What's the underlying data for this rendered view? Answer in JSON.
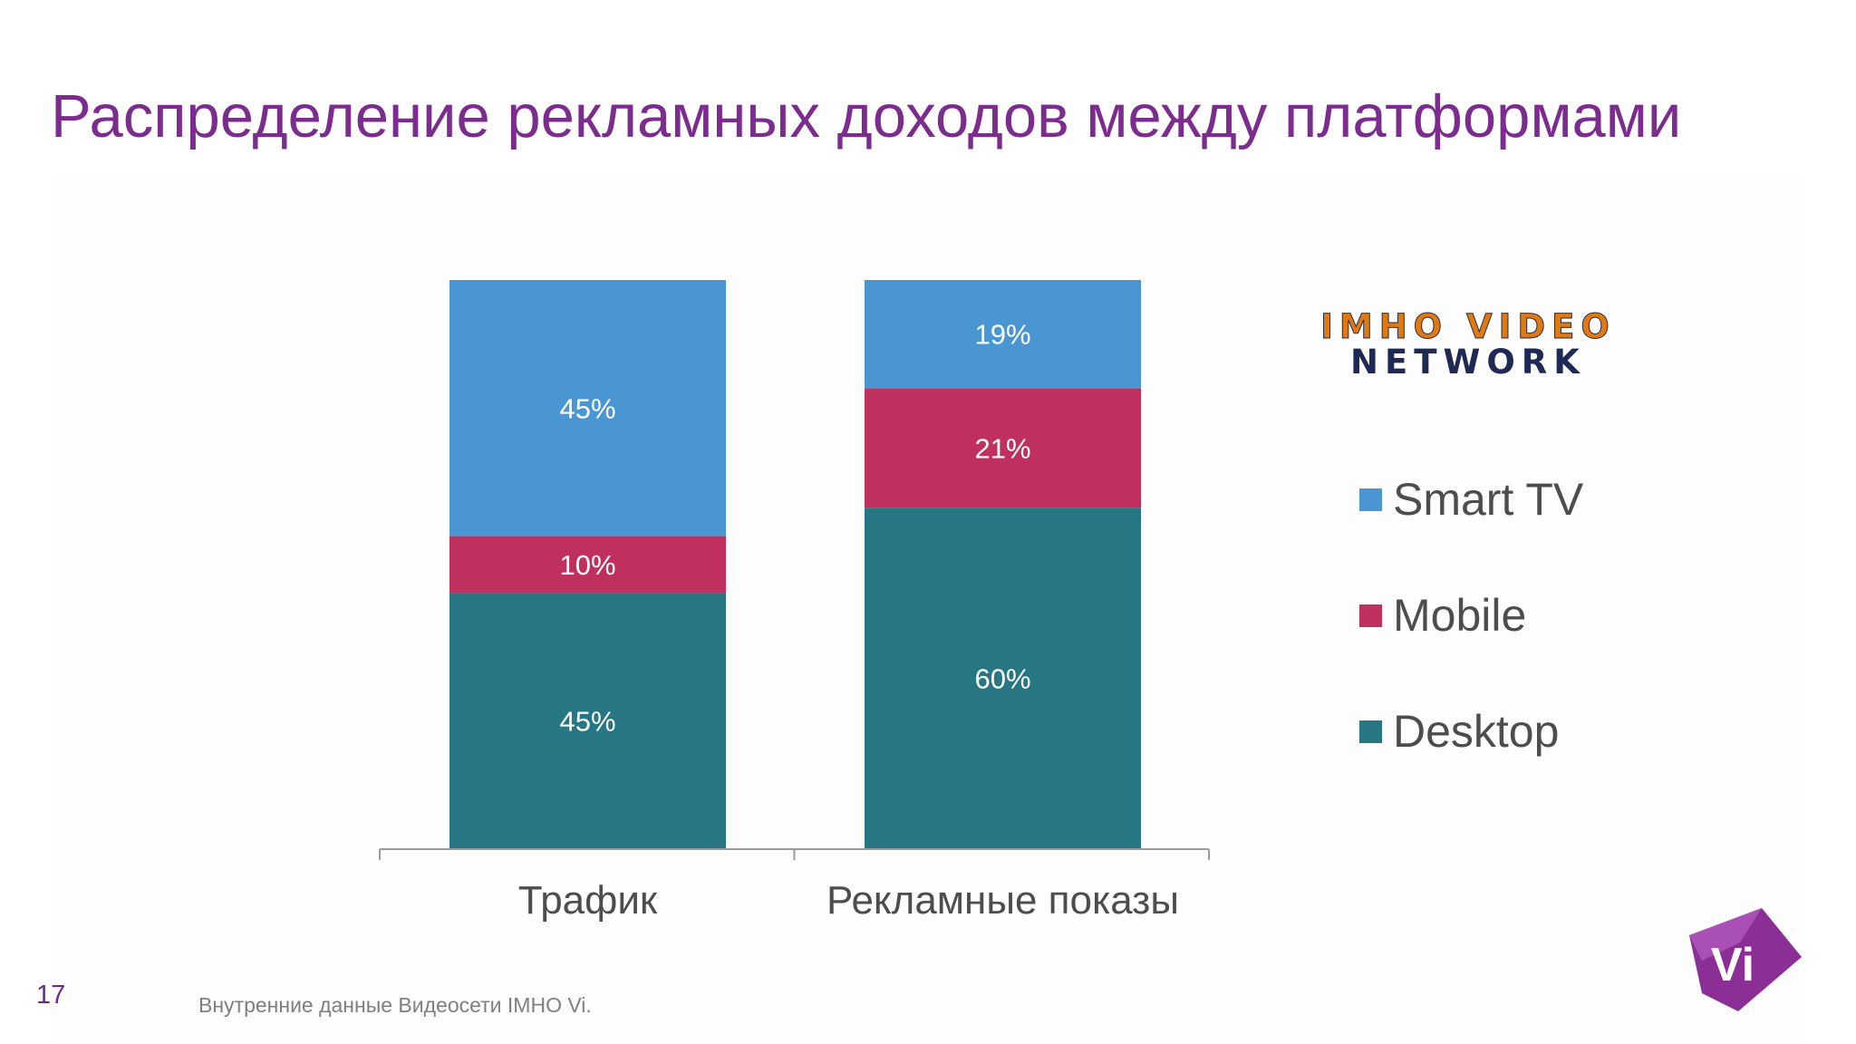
{
  "slide": {
    "title": "Распределение рекламных доходов между платформами",
    "page_number": "17",
    "source_note": "Внутренние данные Видеосети IMHO Vi."
  },
  "brand": {
    "logo_line1": "IMHO VIDEO",
    "logo_line2": "NETWORK",
    "corner_logo_text": "Vi"
  },
  "colors": {
    "title": "#7b2c8e",
    "smart_tv": "#4a96d2",
    "mobile": "#c0305f",
    "desktop": "#277684"
  },
  "chart_data": {
    "type": "bar",
    "stacked": true,
    "percent_stacked": true,
    "categories": [
      "Трафик",
      "Рекламные показы"
    ],
    "series": [
      {
        "name": "Desktop",
        "values": [
          45,
          60
        ],
        "labels": [
          "45%",
          "60%"
        ],
        "color": "#277684"
      },
      {
        "name": "Mobile",
        "values": [
          10,
          21
        ],
        "labels": [
          "10%",
          "21%"
        ],
        "color": "#c0305f"
      },
      {
        "name": "Smart TV",
        "values": [
          45,
          19
        ],
        "labels": [
          "45%",
          "19%"
        ],
        "color": "#4a96d2"
      }
    ],
    "legend": [
      "Smart TV",
      "Mobile",
      "Desktop"
    ],
    "legend_position": "right",
    "ylim": [
      0,
      100
    ],
    "grid": false
  }
}
